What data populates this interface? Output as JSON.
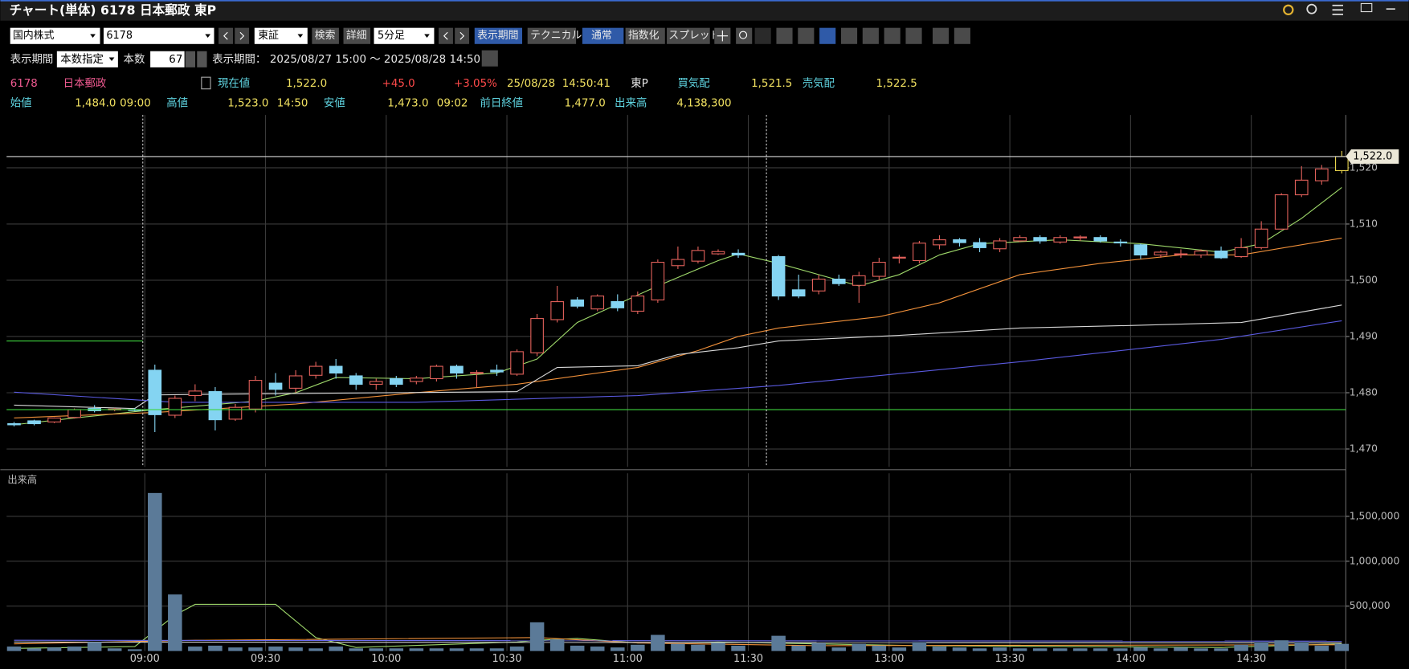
{
  "header": {
    "title": "チャート(単体) 6178 日本郵政 東P"
  },
  "toolbar": {
    "market": "国内株式",
    "code": "6178",
    "exchange": "東証",
    "search": "検索",
    "detail": "詳細",
    "interval": "5分足",
    "period_button": "表示期間",
    "technical": "テクニカル",
    "normal": "通常",
    "index": "指数化",
    "spread": "スプレッド"
  },
  "period_row": {
    "label": "表示期間",
    "mode": "本数指定",
    "count_label": "本数",
    "count": "67",
    "range_label": "表示期間：",
    "range": "2025/08/27 15:00 ～ 2025/08/28 14:50"
  },
  "quote": {
    "code": "6178",
    "name": "日本郵政",
    "current_label": "現在値",
    "current": "1,522.0",
    "change": "+45.0",
    "change_pct": "+3.05%",
    "time": "25/08/28  14:50:41",
    "market": "東P",
    "bid_label": "買気配",
    "bid": "1,521.5",
    "ask_label": "売気配",
    "ask": "1,522.5"
  },
  "ohlc": {
    "open_label": "始値",
    "open": "1,484.0",
    "open_time": "09:00",
    "high_label": "高値",
    "high": "1,523.0",
    "high_time": "14:50",
    "low_label": "安値",
    "low": "1,473.0",
    "low_time": "09:02",
    "prev_close_label": "前日終値",
    "prev_close": "1,477.0",
    "volume_label": "出来高",
    "volume": "4,138,300"
  },
  "chart_data": [
    {
      "type": "candlestick",
      "xlim": [
        -0.37,
        66.2
      ],
      "ylim": [
        1466.8,
        1529.4
      ],
      "yticks": [
        {
          "value": 1470,
          "label": "1,470"
        },
        {
          "value": 1480,
          "label": "1,480"
        },
        {
          "value": 1490,
          "label": "1,490"
        },
        {
          "value": 1500,
          "label": "1,500"
        },
        {
          "value": 1510,
          "label": "1,510"
        },
        {
          "value": 1520,
          "label": "1,520"
        }
      ],
      "xticks": [
        {
          "value": 6.5,
          "label": "09:00"
        },
        {
          "value": 12.5,
          "label": "09:30"
        },
        {
          "value": 18.5,
          "label": "10:00"
        },
        {
          "value": 24.5,
          "label": "10:30"
        },
        {
          "value": 30.5,
          "label": "11:00"
        },
        {
          "value": 36.5,
          "label": "11:30"
        },
        {
          "value": 43.5,
          "label": "13:00"
        },
        {
          "value": 49.5,
          "label": "13:30"
        },
        {
          "value": 55.5,
          "label": "14:00"
        },
        {
          "value": 61.5,
          "label": "14:30"
        }
      ],
      "session_breaks": [
        6.4,
        37.4
      ],
      "up_color": "#e0605a",
      "down_color": "#84d4f2",
      "last_color": "#e8d44d",
      "open": [
        1474.5,
        1475.0,
        1474.8,
        1475.6,
        1477.2,
        1477.0,
        1477.0,
        1484.0,
        1476.0,
        1479.5,
        1480.2,
        1475.3,
        1477.1,
        1481.7,
        1480.8,
        1483.1,
        1484.7,
        1483.0,
        1481.5,
        1482.5,
        1482.0,
        1482.5,
        1484.7,
        1483.5,
        1484.0,
        1483.3,
        1487.1,
        1493.0,
        1496.5,
        1494.9,
        1496.2,
        1494.5,
        1496.5,
        1502.6,
        1503.4,
        1504.7,
        1504.8,
        null,
        1504.2,
        1498.3,
        1498.1,
        1500.2,
        1499.1,
        1500.7,
        1504.0,
        1503.5,
        1506.3,
        1507.2,
        1506.7,
        1505.6,
        1507.0,
        1507.6,
        1506.8,
        1507.6,
        1507.6,
        1506.8,
        1506.3,
        1504.5,
        1504.7,
        1504.5,
        1505.2,
        1504.2,
        1505.8,
        1509.1,
        1515.2,
        1517.7,
        1519.5
      ],
      "high": [
        1474.8,
        1475.2,
        1475.6,
        1477.2,
        1477.8,
        1477.3,
        1477.3,
        1485.0,
        1479.5,
        1481.5,
        1481.0,
        1478.0,
        1483.0,
        1483.5,
        1484.0,
        1485.5,
        1486.0,
        1483.5,
        1482.5,
        1483.0,
        1483.0,
        1485.0,
        1485.0,
        1484.0,
        1485.0,
        1487.7,
        1494.0,
        1499.0,
        1497.0,
        1497.5,
        1497.5,
        1498.0,
        1503.7,
        1506.0,
        1506.0,
        1505.5,
        1505.5,
        null,
        1504.5,
        1501.0,
        1501.0,
        1501.0,
        1501.5,
        1504.0,
        1504.5,
        1507.0,
        1508.0,
        1507.5,
        1507.5,
        1507.5,
        1508.0,
        1508.0,
        1508.0,
        1508.0,
        1508.0,
        1507.3,
        1506.5,
        1505.3,
        1505.5,
        1505.5,
        1506.0,
        1507.5,
        1510.5,
        1515.5,
        1520.3,
        1520.5,
        1523.0
      ],
      "low": [
        1474.0,
        1474.2,
        1474.6,
        1475.4,
        1476.5,
        1476.7,
        1476.7,
        1473.0,
        1475.5,
        1478.5,
        1473.3,
        1475.0,
        1476.5,
        1479.5,
        1480.0,
        1482.5,
        1482.5,
        1480.5,
        1480.5,
        1481.0,
        1481.5,
        1482.0,
        1482.5,
        1481.0,
        1483.0,
        1483.0,
        1486.5,
        1492.5,
        1495.0,
        1494.5,
        1494.5,
        1494.0,
        1496.0,
        1502.0,
        1503.0,
        1504.5,
        1504.0,
        null,
        1496.5,
        1496.8,
        1497.5,
        1499.0,
        1496.0,
        1500.0,
        1503.0,
        1503.0,
        1505.5,
        1506.0,
        1505.0,
        1505.0,
        1506.8,
        1506.5,
        1506.5,
        1507.0,
        1506.7,
        1506.0,
        1503.8,
        1504.0,
        1504.0,
        1504.0,
        1503.8,
        1504.0,
        1505.5,
        1509.0,
        1514.8,
        1517.0,
        1519.0
      ],
      "close": [
        1474.3,
        1474.5,
        1475.5,
        1477.0,
        1476.8,
        1477.1,
        1476.9,
        1476.1,
        1479.0,
        1480.3,
        1475.2,
        1477.4,
        1482.2,
        1480.6,
        1483.0,
        1484.7,
        1483.5,
        1481.5,
        1482.0,
        1481.5,
        1482.6,
        1484.7,
        1483.5,
        1483.6,
        1483.7,
        1487.3,
        1493.2,
        1496.2,
        1495.4,
        1497.2,
        1495.1,
        1497.2,
        1503.2,
        1503.7,
        1505.3,
        1505.1,
        1504.5,
        null,
        1497.2,
        1497.2,
        1500.2,
        1499.4,
        1500.8,
        1503.2,
        1504.1,
        1506.6,
        1507.2,
        1506.7,
        1505.8,
        1507.0,
        1507.6,
        1507.0,
        1507.6,
        1507.7,
        1507.0,
        1506.7,
        1504.5,
        1505.0,
        1504.7,
        1505.2,
        1504.0,
        1505.8,
        1509.1,
        1515.2,
        1517.8,
        1519.8,
        1522.0
      ],
      "lines": [
        {
          "color": "#9ed86a",
          "x": [
            0,
            3,
            7,
            12,
            14,
            16,
            20,
            24,
            26,
            28,
            32,
            35,
            36,
            38,
            42,
            44,
            46,
            48,
            52,
            56,
            60,
            62,
            64,
            66
          ],
          "values": [
            1474.3,
            1475.5,
            1477.0,
            1478.5,
            1480.0,
            1482.7,
            1482.5,
            1483.5,
            1486.0,
            1492.5,
            1499.0,
            1503.5,
            1504.7,
            1503.0,
            1499.0,
            1501.0,
            1504.5,
            1506.5,
            1507.2,
            1506.5,
            1505.0,
            1506.5,
            1511.0,
            1516.5
          ]
        },
        {
          "color": "#f0903a",
          "x": [
            0,
            7,
            14,
            20,
            25,
            31,
            34,
            36,
            38,
            43,
            46,
            50,
            54,
            58,
            61,
            66
          ],
          "values": [
            1475.5,
            1476.5,
            1478.0,
            1480.0,
            1481.5,
            1484.5,
            1487.5,
            1490.0,
            1491.5,
            1493.5,
            1496.0,
            1501.0,
            1503.0,
            1504.5,
            1504.5,
            1507.5
          ]
        },
        {
          "color": "#d8d8d8",
          "x": [
            0,
            6,
            7,
            12,
            25,
            27,
            31,
            33,
            36,
            38,
            44,
            50,
            56,
            61,
            66
          ],
          "values": [
            1477.8,
            1477.2,
            1479.6,
            1479.8,
            1480.2,
            1484.5,
            1484.8,
            1486.8,
            1488.0,
            1489.2,
            1490.2,
            1491.5,
            1492.0,
            1492.5,
            1495.6
          ]
        },
        {
          "color": "#5a5ae0",
          "x": [
            0,
            8,
            20,
            31,
            38,
            50,
            60,
            66
          ],
          "values": [
            1480.1,
            1478.3,
            1478.3,
            1479.5,
            1481.3,
            1485.5,
            1489.5,
            1492.8
          ]
        }
      ],
      "hlines": [
        {
          "value": 1477.0,
          "color": "#3ed43e"
        },
        {
          "value": 1489.2,
          "color": "#3ed43e",
          "x": [
            -0.37,
            6.4
          ]
        }
      ],
      "price_line": {
        "value": 1522.0,
        "label": "1,522.0",
        "color": "#d8d8d8"
      }
    },
    {
      "type": "bar",
      "title": "出来高",
      "xlim": [
        -0.37,
        66.2
      ],
      "ylim": [
        0,
        1980000
      ],
      "color": "#5b7a98",
      "yticks": [
        {
          "value": 500000,
          "label": "500,000"
        },
        {
          "value": 1000000,
          "label": "1,000,000"
        },
        {
          "value": 1500000,
          "label": "1,500,000"
        }
      ],
      "values": [
        50000,
        30000,
        40000,
        50000,
        100000,
        30000,
        20000,
        1760000,
        630000,
        50000,
        60000,
        40000,
        40000,
        50000,
        40000,
        30000,
        50000,
        30000,
        30000,
        30000,
        30000,
        30000,
        30000,
        30000,
        30000,
        50000,
        320000,
        130000,
        60000,
        50000,
        40000,
        70000,
        180000,
        80000,
        70000,
        90000,
        60000,
        null,
        170000,
        60000,
        90000,
        40000,
        80000,
        60000,
        40000,
        100000,
        50000,
        40000,
        30000,
        40000,
        30000,
        30000,
        30000,
        30000,
        30000,
        30000,
        40000,
        30000,
        40000,
        30000,
        30000,
        70000,
        100000,
        120000,
        100000,
        60000,
        80000
      ],
      "lines": [
        {
          "color": "#9ed86a",
          "x": [
            0,
            6,
            8,
            9,
            13,
            15,
            17,
            25,
            26,
            28,
            31,
            35,
            40,
            45,
            60,
            66
          ],
          "values": [
            30000,
            50000,
            400000,
            520000,
            520000,
            150000,
            40000,
            100000,
            120000,
            140000,
            90000,
            100000,
            80000,
            60000,
            40000,
            80000
          ]
        },
        {
          "color": "#f0903a",
          "x": [
            0,
            9,
            26,
            31,
            40,
            66
          ],
          "values": [
            80000,
            120000,
            150000,
            90000,
            60000,
            70000
          ]
        },
        {
          "color": "#d8d8d8",
          "x": [
            0,
            66
          ],
          "values": [
            100000,
            90000
          ]
        },
        {
          "color": "#6a6af0",
          "x": [
            0,
            66
          ],
          "values": [
            120000,
            110000
          ]
        }
      ]
    }
  ]
}
